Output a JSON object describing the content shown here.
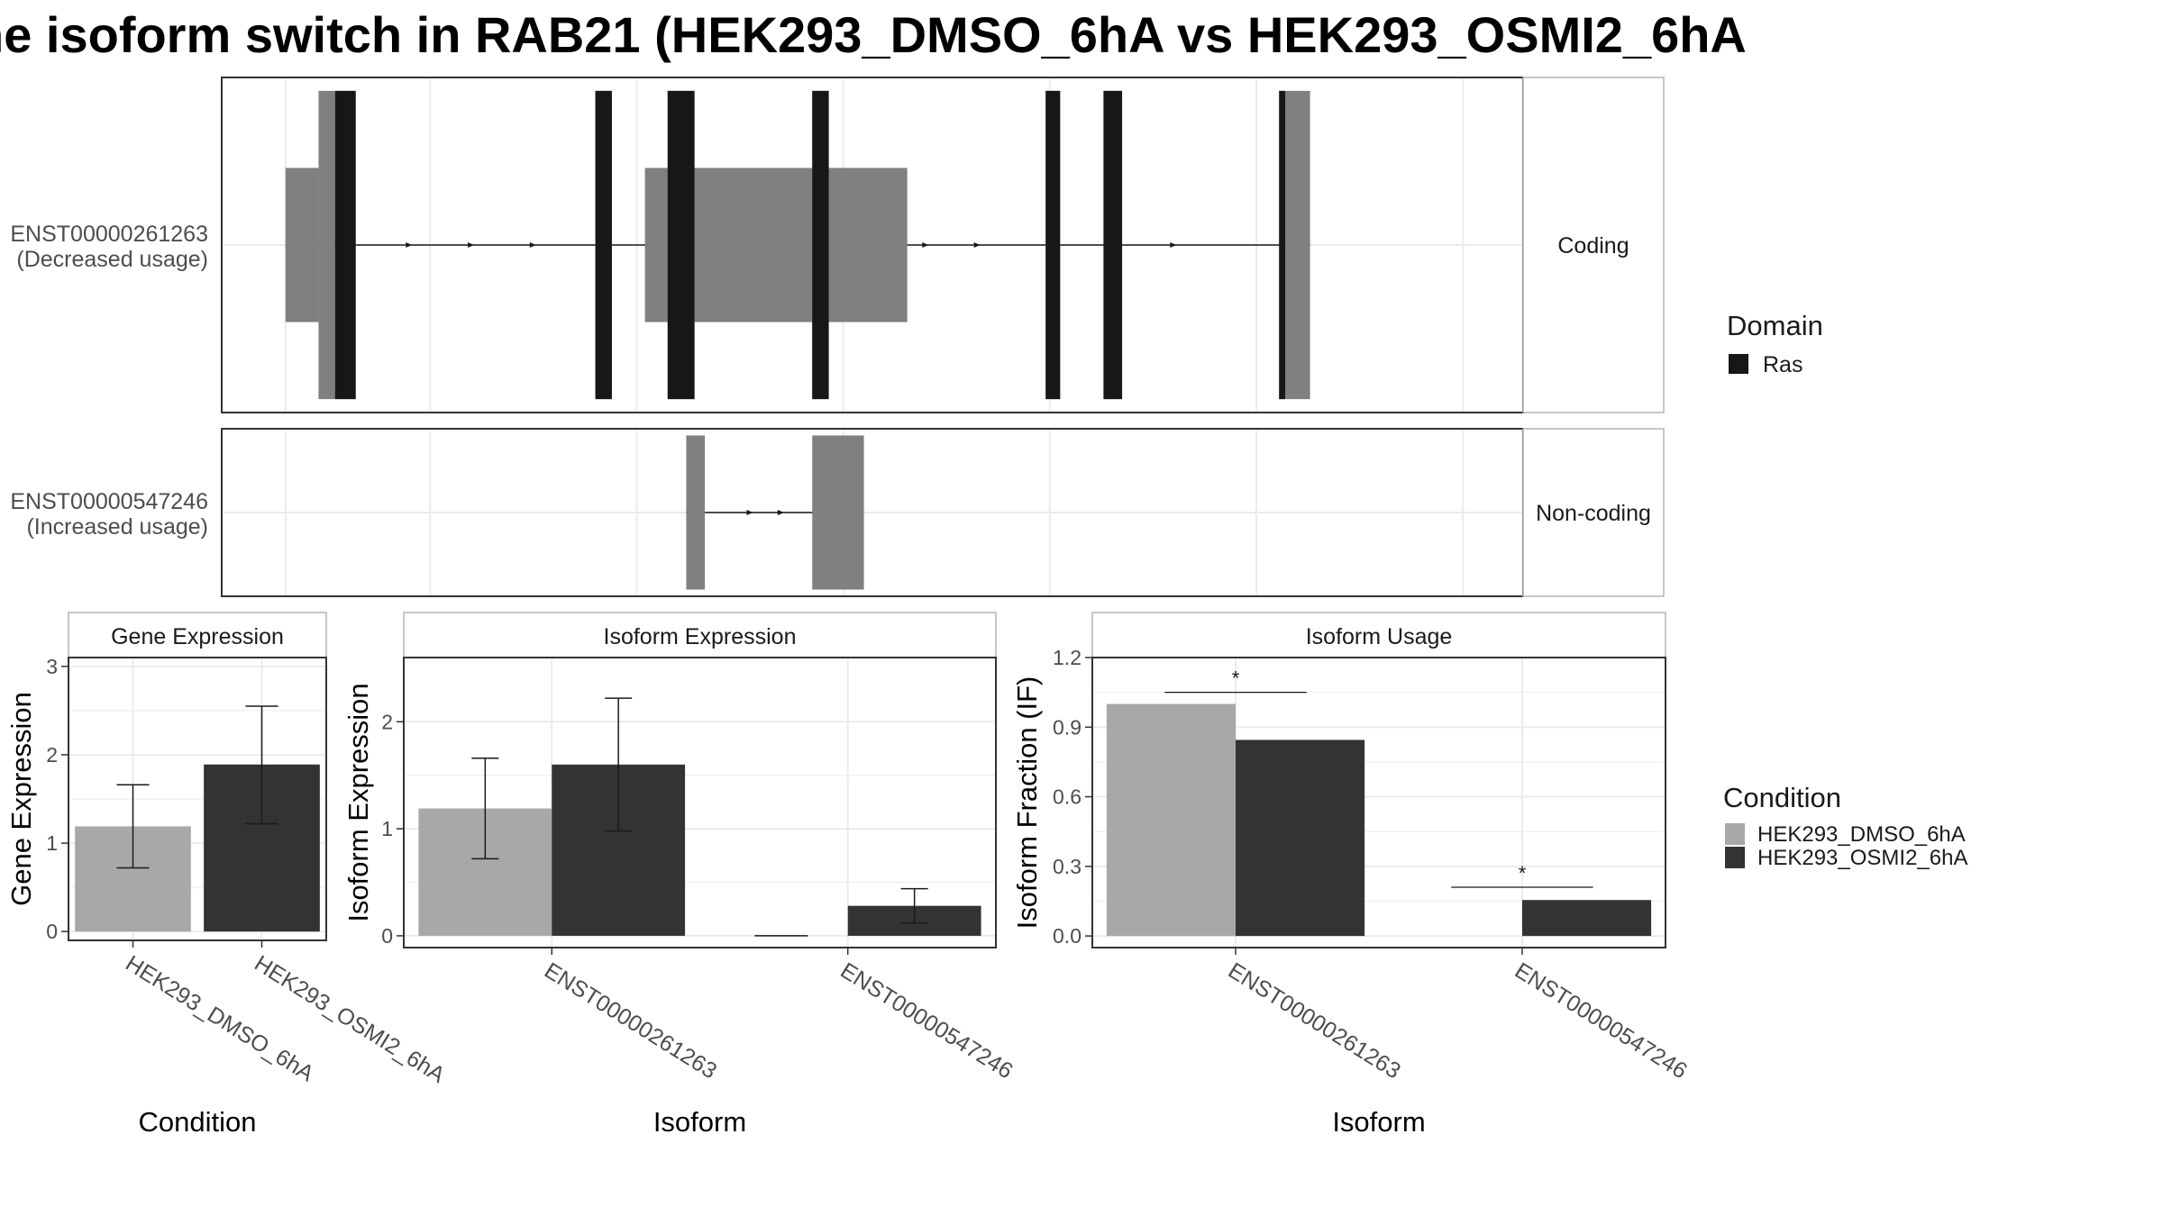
{
  "title": "he isoform switch in RAB21 (HEK293_DMSO_6hA vs HEK293_OSMI2_6hA",
  "colors": {
    "exon_utr": "#808080",
    "domain_ras": "#171717",
    "cond_dmso": "#a8a8a8",
    "cond_osmi2": "#333333",
    "panel_border": "#333333",
    "grid": "#ebebeb",
    "strip_border": "#b3b3b3"
  },
  "structure": {
    "isoforms": [
      {
        "id": "ENST00000261263",
        "usage_label": "(Decreased usage)",
        "facet": "Coding",
        "utr_blocks": [
          [
            3.0,
            4.6
          ],
          [
            20.4,
            33.1
          ]
        ],
        "exons": [
          [
            4.6,
            5.4
          ],
          [
            5.4,
            6.4
          ],
          [
            18.0,
            18.8
          ],
          [
            21.5,
            22.8
          ],
          [
            28.5,
            29.3
          ],
          [
            39.8,
            40.5
          ],
          [
            42.6,
            43.5
          ],
          [
            51.1,
            51.4
          ],
          [
            51.4,
            52.6
          ]
        ],
        "domains": [
          [
            5.4,
            6.4
          ],
          [
            18.0,
            18.8
          ],
          [
            21.5,
            22.8
          ],
          [
            28.5,
            29.3
          ],
          [
            39.8,
            40.5
          ],
          [
            42.6,
            43.5
          ],
          [
            51.1,
            51.4
          ]
        ],
        "intron_arrows": [
          9.0,
          12.0,
          15.0,
          25.0,
          31.5,
          34.0,
          36.5,
          46.0
        ]
      },
      {
        "id": "ENST00000547246",
        "usage_label": "(Increased usage)",
        "facet": "Non-coding",
        "utr_blocks": [],
        "exons": [
          [
            22.4,
            23.3
          ],
          [
            28.5,
            31.0
          ]
        ],
        "domains": [],
        "intron_arrows": [
          25.5,
          27.0
        ]
      }
    ],
    "x_range": [
      0,
      63
    ],
    "legend": {
      "title": "Domain",
      "items": [
        {
          "label": "Ras",
          "color": "#171717"
        }
      ]
    }
  },
  "chart_data": [
    {
      "type": "bar",
      "facet_title": "Gene Expression",
      "xlabel": "Condition",
      "ylabel": "Gene Expression",
      "categories": [
        "HEK293_DMSO_6hA",
        "HEK293_OSMI2_6hA"
      ],
      "values": [
        1.19,
        1.89
      ],
      "errors": [
        [
          0.72,
          1.66
        ],
        [
          1.22,
          2.55
        ]
      ],
      "ylim": [
        -0.1,
        3.1
      ],
      "yticks": [
        "0",
        "1",
        "2",
        "3"
      ],
      "ytick_values": [
        0,
        1,
        2,
        3
      ]
    },
    {
      "type": "bar",
      "facet_title": "Isoform Expression",
      "xlabel": "Isoform",
      "ylabel": "Isoform Expression",
      "categories": [
        "ENST00000261263",
        "ENST00000547246"
      ],
      "series": [
        {
          "name": "HEK293_DMSO_6hA",
          "values": [
            1.19,
            0.0
          ],
          "errors": [
            [
              0.72,
              1.66
            ],
            [
              0.0,
              0.0
            ]
          ]
        },
        {
          "name": "HEK293_OSMI2_6hA",
          "values": [
            1.6,
            0.28
          ],
          "errors": [
            [
              0.98,
              2.22
            ],
            [
              0.12,
              0.44
            ]
          ]
        }
      ],
      "ylim": [
        -0.11,
        2.6
      ],
      "yticks": [
        "0",
        "1",
        "2"
      ],
      "ytick_values": [
        0,
        1,
        2
      ]
    },
    {
      "type": "bar",
      "facet_title": "Isoform Usage",
      "xlabel": "Isoform",
      "ylabel": "Isoform Fraction (IF)",
      "categories": [
        "ENST00000261263",
        "ENST00000547246"
      ],
      "series": [
        {
          "name": "HEK293_DMSO_6hA",
          "values": [
            1.0,
            0.0
          ]
        },
        {
          "name": "HEK293_OSMI2_6hA",
          "values": [
            0.845,
            0.155
          ]
        }
      ],
      "ylim": [
        -0.05,
        1.2
      ],
      "yticks": [
        "0.0",
        "0.3",
        "0.6",
        "0.9",
        "1.2"
      ],
      "ytick_values": [
        0,
        0.3,
        0.6,
        0.9,
        1.2
      ],
      "significance": [
        {
          "category_index": 0,
          "y": 1.05,
          "label": "*"
        },
        {
          "category_index": 1,
          "y": 0.21,
          "label": "*"
        }
      ]
    }
  ],
  "condition_legend": {
    "title": "Condition",
    "items": [
      {
        "label": "HEK293_DMSO_6hA",
        "color": "#a8a8a8"
      },
      {
        "label": "HEK293_OSMI2_6hA",
        "color": "#333333"
      }
    ]
  }
}
